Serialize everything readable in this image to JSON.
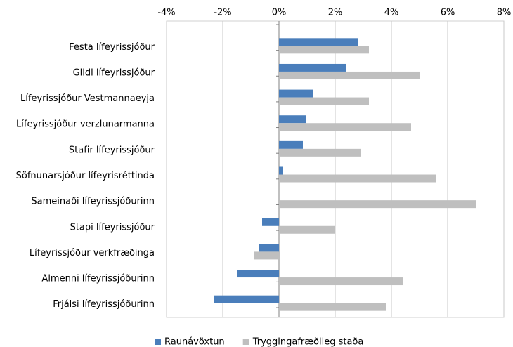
{
  "chart_data": {
    "type": "hbar",
    "categories": [
      "Festa lífeyrissjóður",
      "Gildi lífeyrissjóður",
      "Lífeyrissjóður Vestmannaeyja",
      "Lífeyrissjóður verzlunarmanna",
      "Stafir lífeyrissjóður",
      "Söfnunarsjóður lífeyrisréttinda",
      "Sameinaði lífeyrissjóðurinn",
      "Stapi lífeyrissjóður",
      "Lífeyrissjóður verkfræðinga",
      "Almenni lífeyrissjóðurinn",
      "Frjálsi lífeyrissjóðurinn"
    ],
    "series": [
      {
        "name": "Raunávöxtun",
        "color": "#4a7ebb",
        "values": [
          2.8,
          2.4,
          1.2,
          0.95,
          0.85,
          0.15,
          null,
          -0.6,
          -0.7,
          -1.5,
          -2.3
        ]
      },
      {
        "name": "Tryggingafræðileg staða",
        "color": "#bfbfbf",
        "values": [
          3.2,
          5.0,
          3.2,
          4.7,
          2.9,
          5.6,
          7.0,
          2.0,
          -0.9,
          4.4,
          3.8
        ]
      }
    ],
    "xlim": [
      -4,
      8
    ],
    "xticks": [
      {
        "value": -4,
        "label": "-4%"
      },
      {
        "value": -2,
        "label": "-2%"
      },
      {
        "value": 0,
        "label": "0%"
      },
      {
        "value": 2,
        "label": "2%"
      },
      {
        "value": 4,
        "label": "4%"
      },
      {
        "value": 6,
        "label": "6%"
      },
      {
        "value": 8,
        "label": "8%"
      }
    ],
    "grid": true,
    "legend": "bottom"
  }
}
